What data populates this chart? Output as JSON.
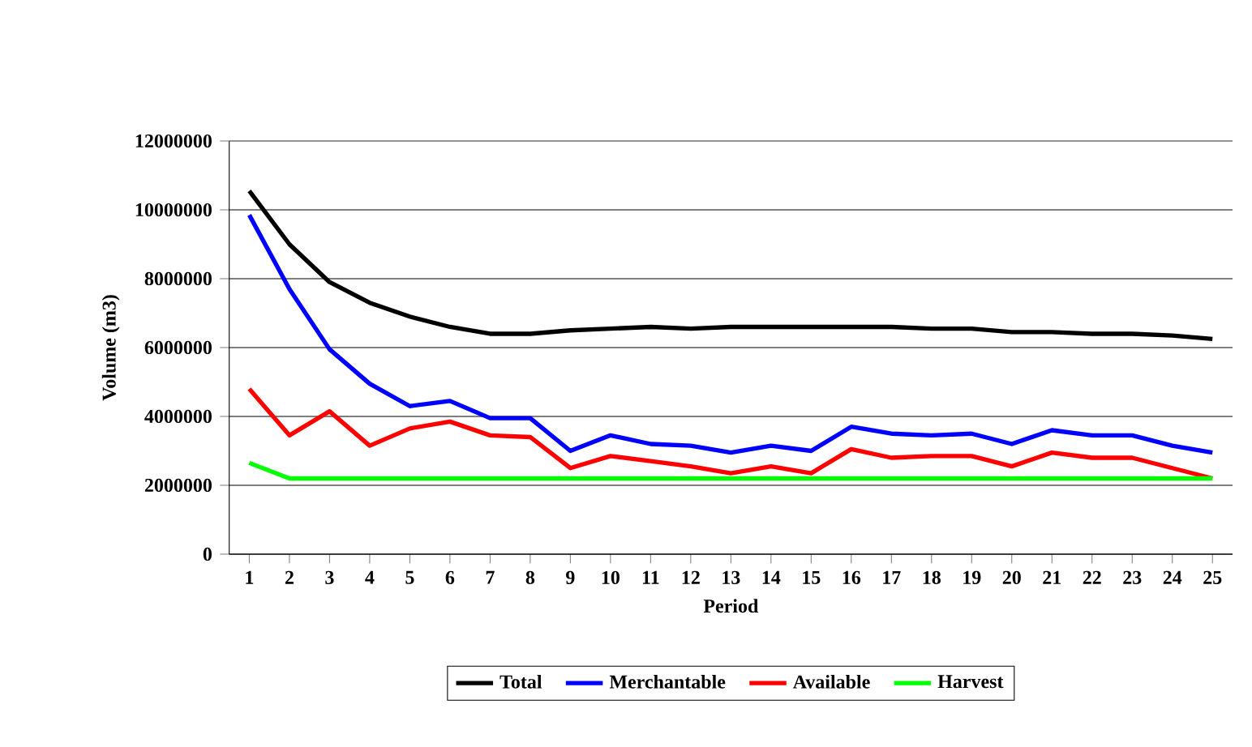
{
  "chart_data": {
    "type": "line",
    "xlabel": "Period",
    "ylabel": "Volume (m3)",
    "categories": [
      "1",
      "2",
      "3",
      "4",
      "5",
      "6",
      "7",
      "8",
      "9",
      "10",
      "11",
      "12",
      "13",
      "14",
      "15",
      "16",
      "17",
      "18",
      "19",
      "20",
      "21",
      "22",
      "23",
      "24",
      "25"
    ],
    "ylim": [
      0,
      12000000
    ],
    "yticks": [
      0,
      2000000,
      4000000,
      6000000,
      8000000,
      10000000,
      12000000
    ],
    "grid": "y",
    "legend": "bottom",
    "line_style": "solid",
    "marker": "none",
    "series": [
      {
        "name": "Total",
        "color": "#000000",
        "values": [
          10550000,
          9000000,
          7900000,
          7300000,
          6900000,
          6600000,
          6400000,
          6400000,
          6500000,
          6550000,
          6600000,
          6550000,
          6600000,
          6600000,
          6600000,
          6600000,
          6600000,
          6550000,
          6550000,
          6450000,
          6450000,
          6400000,
          6400000,
          6350000,
          6250000
        ]
      },
      {
        "name": "Merchantable",
        "color": "#0000ff",
        "values": [
          9850000,
          7700000,
          5950000,
          4950000,
          4300000,
          4450000,
          3950000,
          3950000,
          3000000,
          3450000,
          3200000,
          3150000,
          2950000,
          3150000,
          3000000,
          3700000,
          3500000,
          3450000,
          3500000,
          3200000,
          3600000,
          3450000,
          3450000,
          3150000,
          2950000
        ]
      },
      {
        "name": "Available",
        "color": "#ff0000",
        "values": [
          4800000,
          3450000,
          4150000,
          3150000,
          3650000,
          3850000,
          3450000,
          3400000,
          2500000,
          2850000,
          2700000,
          2550000,
          2350000,
          2550000,
          2350000,
          3050000,
          2800000,
          2850000,
          2850000,
          2550000,
          2950000,
          2800000,
          2800000,
          2500000,
          2200000
        ]
      },
      {
        "name": "Harvest",
        "color": "#00ff00",
        "values": [
          2650000,
          2200000,
          2200000,
          2200000,
          2200000,
          2200000,
          2200000,
          2200000,
          2200000,
          2200000,
          2200000,
          2200000,
          2200000,
          2200000,
          2200000,
          2200000,
          2200000,
          2200000,
          2200000,
          2200000,
          2200000,
          2200000,
          2200000,
          2200000,
          2200000
        ]
      }
    ]
  }
}
